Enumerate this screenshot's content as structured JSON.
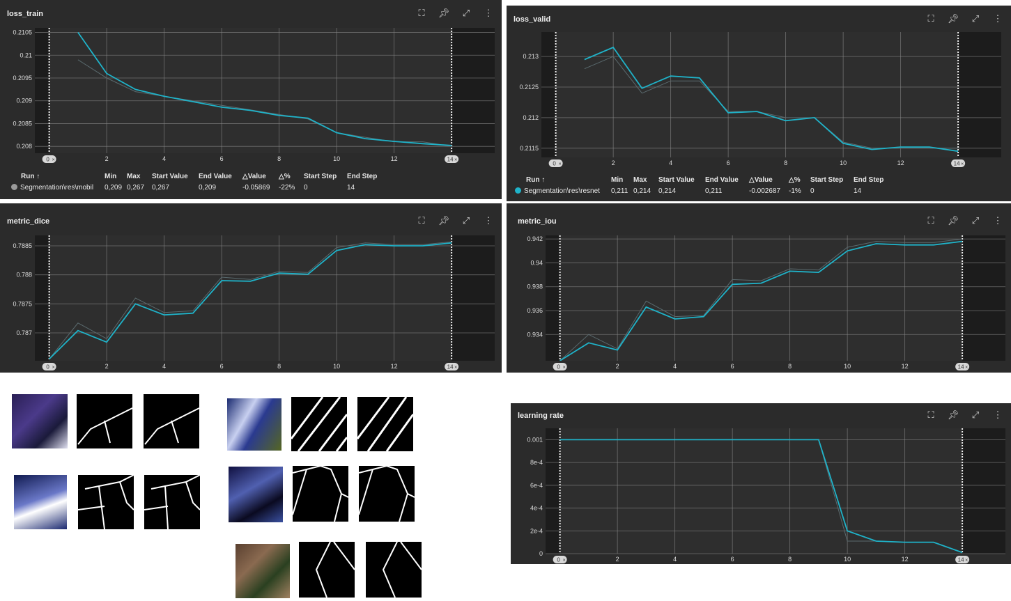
{
  "colors": {
    "accent": "#1fb3c9",
    "card_bg": "#2b2b2b",
    "plot_bg": "#2e2e2e",
    "shade": "#1c1c1c",
    "grid": "#8a8a8a"
  },
  "icons": [
    "fit-domain-icon",
    "pin-icon",
    "fullscreen-icon",
    "more-vert-icon"
  ],
  "panels": [
    {
      "id": "loss-train",
      "title": "loss_train",
      "chart_data": {
        "type": "line",
        "x": [
          1,
          2,
          3,
          4,
          5,
          6,
          7,
          8,
          9,
          10,
          11,
          12,
          13,
          14
        ],
        "series": [
          {
            "values": [
              0.2105,
              0.2096,
              0.20925,
              0.2091,
              0.20898,
              0.20886,
              0.20879,
              0.20868,
              0.20862,
              0.2083,
              0.20817,
              0.20811,
              0.20806,
              0.20802
            ]
          }
        ],
        "raw": [
          0.2099,
          0.2095,
          0.2092,
          0.2091,
          0.209,
          0.2089,
          0.2088,
          0.2087,
          0.2086,
          0.2083,
          0.2082,
          0.2081,
          0.2081,
          0.208
        ],
        "xlim": [
          -0.5,
          15.5
        ],
        "ylim": [
          0.20785,
          0.2106
        ],
        "yticks": [
          "0.2105",
          "0.21",
          "0.2095",
          "0.209",
          "0.2085",
          "0.208"
        ],
        "yticks_v": [
          0.2105,
          0.21,
          0.2095,
          0.209,
          0.2085,
          0.208
        ],
        "xticks": [
          "2",
          "4",
          "6",
          "8",
          "10",
          "12"
        ],
        "range_labels": [
          "0",
          "14"
        ]
      },
      "table": {
        "headers": [
          "Run ↑",
          "Min",
          "Max",
          "Start Value",
          "End Value",
          "△Value",
          "△%",
          "Start Step",
          "End Step"
        ],
        "row": [
          "Segmentation\\res\\mobil",
          "0,209",
          "0,267",
          "0,267",
          "0,209",
          "-0.05869",
          "-22%",
          "0",
          "14"
        ],
        "dot": "#9a9a9a"
      }
    },
    {
      "id": "loss-valid",
      "title": "loss_valid",
      "chart_data": {
        "type": "line",
        "x": [
          1,
          2,
          3,
          4,
          5,
          6,
          7,
          8,
          9,
          10,
          11,
          12,
          13,
          14
        ],
        "series": [
          {
            "values": [
              0.21295,
              0.21315,
              0.21248,
              0.21268,
              0.21265,
              0.21208,
              0.2121,
              0.21195,
              0.212,
              0.21158,
              0.21148,
              0.21152,
              0.21152,
              0.21145
            ]
          }
        ],
        "raw": [
          0.2128,
          0.213,
          0.2124,
          0.2126,
          0.2126,
          0.2121,
          0.2121,
          0.212,
          0.212,
          0.2116,
          0.2115,
          0.2115,
          0.2115,
          0.2115
        ],
        "xlim": [
          -0.5,
          15.5
        ],
        "ylim": [
          0.21135,
          0.2134
        ],
        "yticks": [
          "0.213",
          "0.2125",
          "0.212",
          "0.2115"
        ],
        "yticks_v": [
          0.213,
          0.2125,
          0.212,
          0.2115
        ],
        "xticks": [
          "2",
          "4",
          "6",
          "8",
          "10",
          "12"
        ],
        "range_labels": [
          "0",
          "14"
        ]
      },
      "table": {
        "headers": [
          "Run ↑",
          "Min",
          "Max",
          "Start Value",
          "End Value",
          "△Value",
          "△%",
          "Start Step",
          "End Step"
        ],
        "row": [
          "Segmentation\\res\\resnet",
          "0,211",
          "0,214",
          "0,214",
          "0,211",
          "-0.002687",
          "-1%",
          "0",
          "14"
        ],
        "dot": "#1fb3c9"
      }
    },
    {
      "id": "metric-dice",
      "title": "metric_dice",
      "chart_data": {
        "type": "line",
        "x": [
          0,
          1,
          2,
          3,
          4,
          5,
          6,
          7,
          8,
          9,
          10,
          11,
          12,
          13,
          14
        ],
        "series": [
          {
            "values": [
              0.78655,
              0.78704,
              0.78684,
              0.7875,
              0.78731,
              0.78734,
              0.7879,
              0.78789,
              0.78803,
              0.78801,
              0.78842,
              0.78852,
              0.7885,
              0.7885,
              0.78855
            ]
          }
        ],
        "raw": [
          0.78655,
          0.78717,
          0.7869,
          0.7876,
          0.78735,
          0.78738,
          0.78796,
          0.78792,
          0.78806,
          0.78804,
          0.78847,
          0.78855,
          0.78852,
          0.78852,
          0.78857
        ]
      }
    },
    {
      "id": "metric-iou",
      "title": "metric_iou",
      "chart_data": {
        "type": "line",
        "x": [
          0,
          1,
          2,
          3,
          4,
          5,
          6,
          7,
          8,
          9,
          10,
          11,
          12,
          13,
          14
        ],
        "series": [
          {
            "values": [
              0.9318,
              0.9333,
              0.9327,
              0.9363,
              0.9353,
              0.9355,
              0.9382,
              0.9383,
              0.9393,
              0.9392,
              0.941,
              0.9416,
              0.9415,
              0.9415,
              0.9418
            ]
          }
        ],
        "raw": [
          0.9318,
          0.934,
          0.9328,
          0.9368,
          0.9355,
          0.9356,
          0.9386,
          0.9385,
          0.9395,
          0.9394,
          0.9413,
          0.9418,
          0.9417,
          0.9417,
          0.942
        ]
      }
    },
    {
      "id": "learning-rate",
      "title": "learning rate",
      "chart_data": {
        "type": "line",
        "x": [
          0,
          1,
          2,
          3,
          4,
          5,
          6,
          7,
          8,
          9,
          10,
          11,
          12,
          13,
          14
        ],
        "series": [
          {
            "values": [
              0.001,
              0.001,
              0.001,
              0.001,
              0.001,
              0.001,
              0.001,
              0.001,
              0.001,
              0.001,
              0.0002,
              0.00011,
              0.0001,
              0.0001,
              1e-05
            ]
          }
        ],
        "raw": [
          0.001,
          0.001,
          0.001,
          0.001,
          0.001,
          0.001,
          0.001,
          0.001,
          0.001,
          0.001,
          0.00011,
          0.00011,
          0.0001,
          0.0001,
          1e-05
        ]
      }
    }
  ],
  "chart_axes": {
    "metric-dice": {
      "xlim": [
        -0.5,
        15.5
      ],
      "ylim": [
        0.78652,
        0.78868
      ],
      "yticks": [
        "0.7885",
        "0.788",
        "0.7875",
        "0.787"
      ],
      "yticks_v": [
        0.7885,
        0.788,
        0.7875,
        0.787
      ],
      "xticks": [
        "2",
        "4",
        "6",
        "8",
        "10",
        "12"
      ],
      "range_labels": [
        "0",
        "14"
      ]
    },
    "metric-iou": {
      "xlim": [
        -0.5,
        15.5
      ],
      "ylim": [
        0.9318,
        0.9423
      ],
      "yticks": [
        "0.942",
        "0.94",
        "0.938",
        "0.936",
        "0.934"
      ],
      "yticks_v": [
        0.942,
        0.94,
        0.938,
        0.936,
        0.934
      ],
      "xticks": [
        "2",
        "4",
        "6",
        "8",
        "10",
        "12"
      ],
      "range_labels": [
        "0",
        "14"
      ]
    },
    "learning-rate": {
      "xlim": [
        -0.5,
        15.5
      ],
      "ylim": [
        0.0,
        0.0011
      ],
      "yticks": [
        "0.001",
        "8e-4",
        "6e-4",
        "4e-4",
        "2e-4",
        "0"
      ],
      "yticks_v": [
        0.001,
        0.0008,
        0.0006,
        0.0004,
        0.0002,
        0.0
      ],
      "xticks": [
        "2",
        "4",
        "6",
        "8",
        "10",
        "12"
      ],
      "range_labels": [
        "0",
        "14"
      ]
    }
  }
}
